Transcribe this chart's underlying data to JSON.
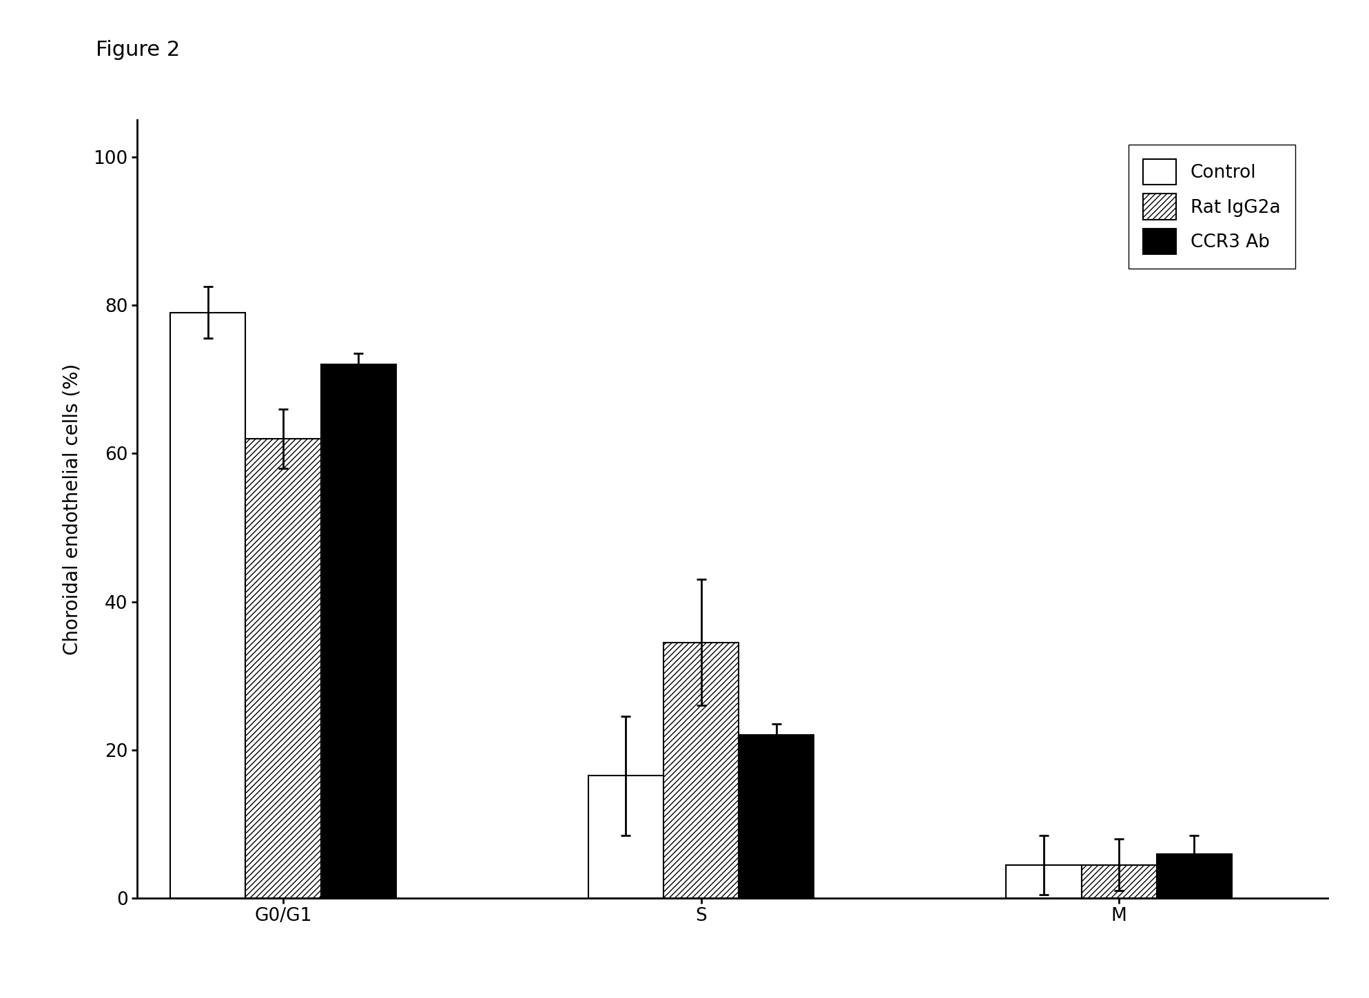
{
  "categories": [
    "G0/G1",
    "S",
    "M"
  ],
  "series": [
    {
      "name": "Control",
      "values": [
        79.0,
        16.5,
        4.5
      ],
      "errors": [
        3.5,
        8.0,
        4.0
      ],
      "facecolor": "white",
      "edgecolor": "black",
      "hatch": ""
    },
    {
      "name": "Rat IgG2a",
      "values": [
        62.0,
        34.5,
        4.5
      ],
      "errors": [
        4.0,
        8.5,
        3.5
      ],
      "facecolor": "white",
      "edgecolor": "black",
      "hatch": "////"
    },
    {
      "name": "CCR3 Ab",
      "values": [
        72.0,
        22.0,
        6.0
      ],
      "errors": [
        1.5,
        1.5,
        2.5
      ],
      "facecolor": "black",
      "edgecolor": "black",
      "hatch": ""
    }
  ],
  "ylabel": "Choroidal endothelial cells (%)",
  "ylim": [
    0,
    105
  ],
  "yticks": [
    0,
    20,
    40,
    60,
    80,
    100
  ],
  "bar_width": 0.18,
  "group_centers": [
    0.35,
    1.35,
    2.35
  ],
  "figure_title": "Figure 2",
  "background_color": "white",
  "fontsize_title": 22,
  "fontsize_labels": 20,
  "fontsize_ticks": 19,
  "fontsize_legend": 19
}
